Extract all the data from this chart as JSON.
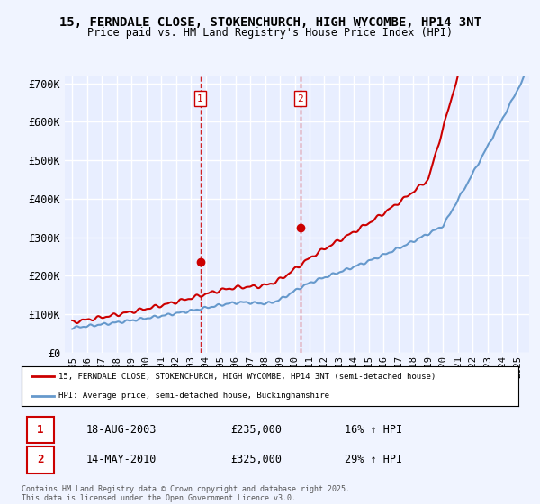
{
  "title": "15, FERNDALE CLOSE, STOKENCHURCH, HIGH WYCOMBE, HP14 3NT",
  "subtitle": "Price paid vs. HM Land Registry's House Price Index (HPI)",
  "background_color": "#f0f4ff",
  "plot_bg_color": "#e8eeff",
  "red_color": "#cc0000",
  "blue_color": "#6699cc",
  "vline_color": "#cc0000",
  "grid_color": "#ffffff",
  "ylim": [
    0,
    720000
  ],
  "yticks": [
    0,
    100000,
    200000,
    300000,
    400000,
    500000,
    600000,
    700000
  ],
  "ytick_labels": [
    "£0",
    "£100K",
    "£200K",
    "£300K",
    "£400K",
    "£500K",
    "£600K",
    "£700K"
  ],
  "transaction1_date": 2003.63,
  "transaction1_label": "1",
  "transaction1_price": 235000,
  "transaction2_date": 2010.37,
  "transaction2_label": "2",
  "transaction2_price": 325000,
  "legend_line1": "15, FERNDALE CLOSE, STOKENCHURCH, HIGH WYCOMBE, HP14 3NT (semi-detached house)",
  "legend_line2": "HPI: Average price, semi-detached house, Buckinghamshire",
  "table_row1_num": "1",
  "table_row1_date": "18-AUG-2003",
  "table_row1_price": "£235,000",
  "table_row1_hpi": "16% ↑ HPI",
  "table_row2_num": "2",
  "table_row2_date": "14-MAY-2010",
  "table_row2_price": "£325,000",
  "table_row2_hpi": "29% ↑ HPI",
  "footer": "Contains HM Land Registry data © Crown copyright and database right 2025.\nThis data is licensed under the Open Government Licence v3.0."
}
